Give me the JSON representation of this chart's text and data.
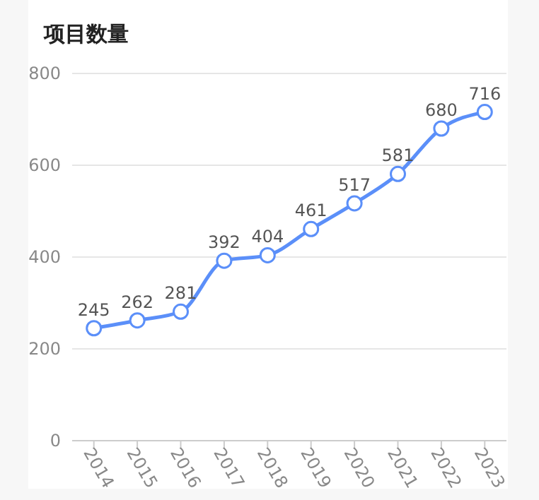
{
  "chart_data": {
    "type": "line",
    "title": "项目数量",
    "categories": [
      "2014",
      "2015",
      "2016",
      "2017",
      "2018",
      "2019",
      "2020",
      "2021",
      "2022",
      "2023"
    ],
    "series": [
      {
        "color": "#5b8ff9",
        "values": [
          245,
          262,
          281,
          392,
          404,
          461,
          517,
          581,
          680,
          716
        ]
      }
    ],
    "ylim": [
      0,
      800
    ],
    "yticks": [
      0,
      200,
      400,
      600,
      800
    ],
    "grid": "y",
    "marker": "circle",
    "data_labels": true
  }
}
